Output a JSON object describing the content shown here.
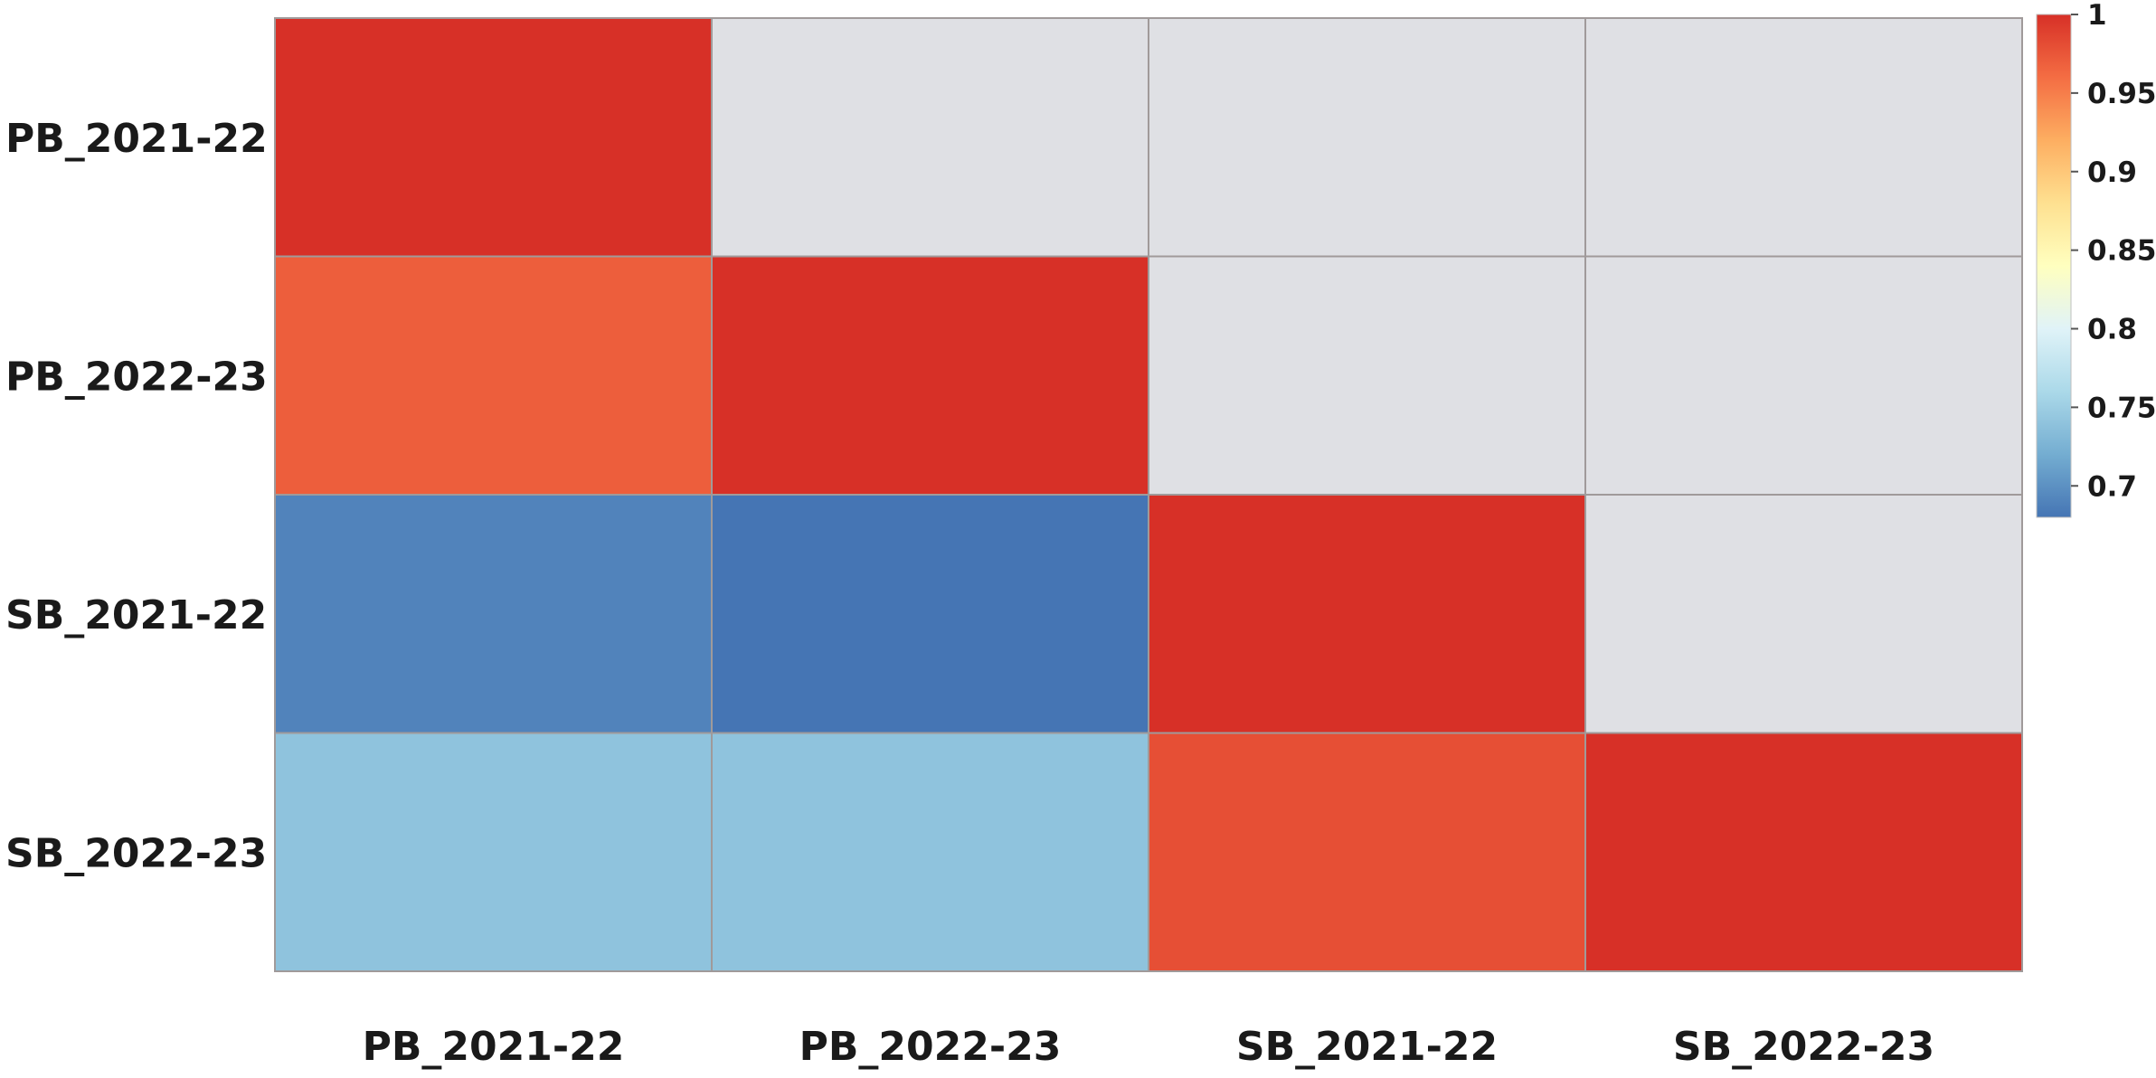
{
  "chart_data": {
    "type": "heatmap",
    "title": "",
    "xlabel": "",
    "ylabel": "",
    "rows": [
      "PB_2021-22",
      "PB_2022-23",
      "SB_2021-22",
      "SB_2022-23"
    ],
    "columns": [
      "PB_2021-22",
      "PB_2022-23",
      "SB_2021-22",
      "SB_2022-23"
    ],
    "values": [
      [
        1.0,
        null,
        null,
        null
      ],
      [
        0.97,
        1.0,
        null,
        null
      ],
      [
        0.69,
        0.68,
        1.0,
        null
      ],
      [
        0.74,
        0.74,
        0.98,
        1.0
      ]
    ],
    "empty_color": "#dfe0e4",
    "grid_color": "#a09a9a",
    "grid": true,
    "colorbar": {
      "range": [
        0.68,
        1.0
      ],
      "ticks": [
        1,
        0.95,
        0.9,
        0.85,
        0.8,
        0.75,
        0.7
      ],
      "tick_labels": [
        "1",
        "0.95",
        "0.9",
        "0.85",
        "0.8",
        "0.75",
        "0.7"
      ],
      "colors": [
        "#4575b4",
        "#74add1",
        "#abd9e9",
        "#e0f3f8",
        "#ffffbf",
        "#fee090",
        "#fdae61",
        "#f46d43",
        "#d73027"
      ],
      "placement": "right"
    }
  }
}
